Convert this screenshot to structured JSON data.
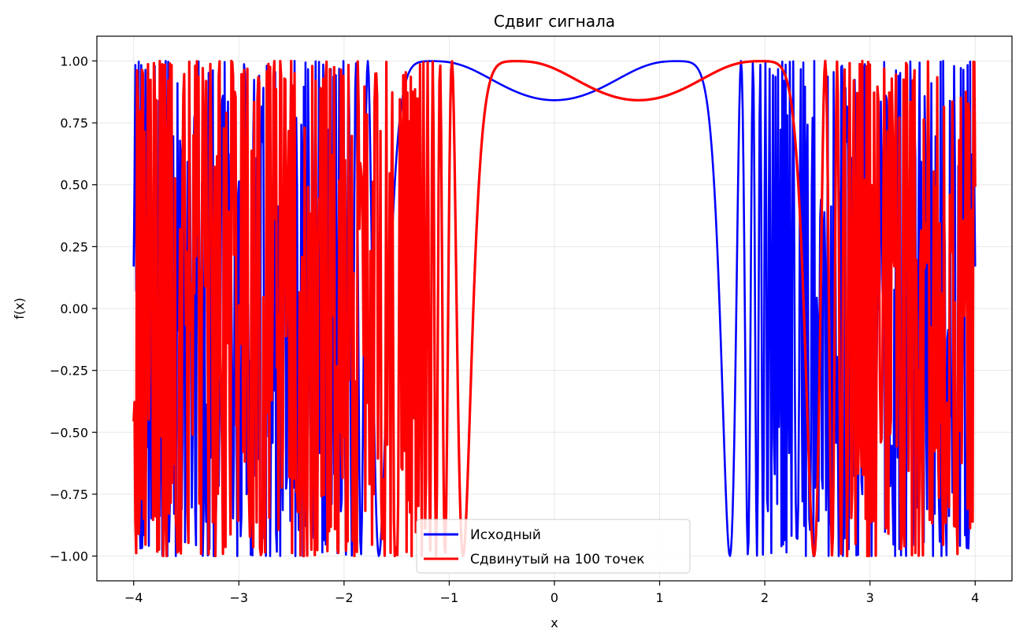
{
  "chart_data": {
    "type": "line",
    "title": "Сдвиг сигнала",
    "xlabel": "x",
    "ylabel": "f(x)",
    "xlim": [
      -4.35,
      4.35
    ],
    "ylim": [
      -1.1,
      1.1
    ],
    "x_ticks": [
      -4,
      -3,
      -2,
      -1,
      0,
      1,
      2,
      3,
      4
    ],
    "x_tick_labels": [
      "−4",
      "−3",
      "−2",
      "−1",
      "0",
      "1",
      "2",
      "3",
      "4"
    ],
    "y_ticks": [
      1.0,
      0.75,
      0.5,
      0.25,
      0.0,
      -0.25,
      -0.5,
      -0.75,
      -1.0
    ],
    "y_tick_labels": [
      "1.00",
      "0.75",
      "0.50",
      "0.25",
      "0.00",
      "−0.25",
      "−0.50",
      "−0.75",
      "−1.00"
    ],
    "grid": true,
    "legend_position": "lower-center",
    "series": [
      {
        "name": "Исходный",
        "color": "#0000ff",
        "x_range": [
          -4,
          4
        ],
        "samples": 1000,
        "expression": "sin(exp(x^2) * cos(x))"
      },
      {
        "name": "Сдвинутый на 100 точек",
        "color": "#ff0000",
        "x_range": [
          -4,
          4
        ],
        "samples": 1000,
        "shift_points": 100,
        "expression": "sin(exp((x-0.8)^2) * cos(x-0.8))"
      }
    ]
  }
}
